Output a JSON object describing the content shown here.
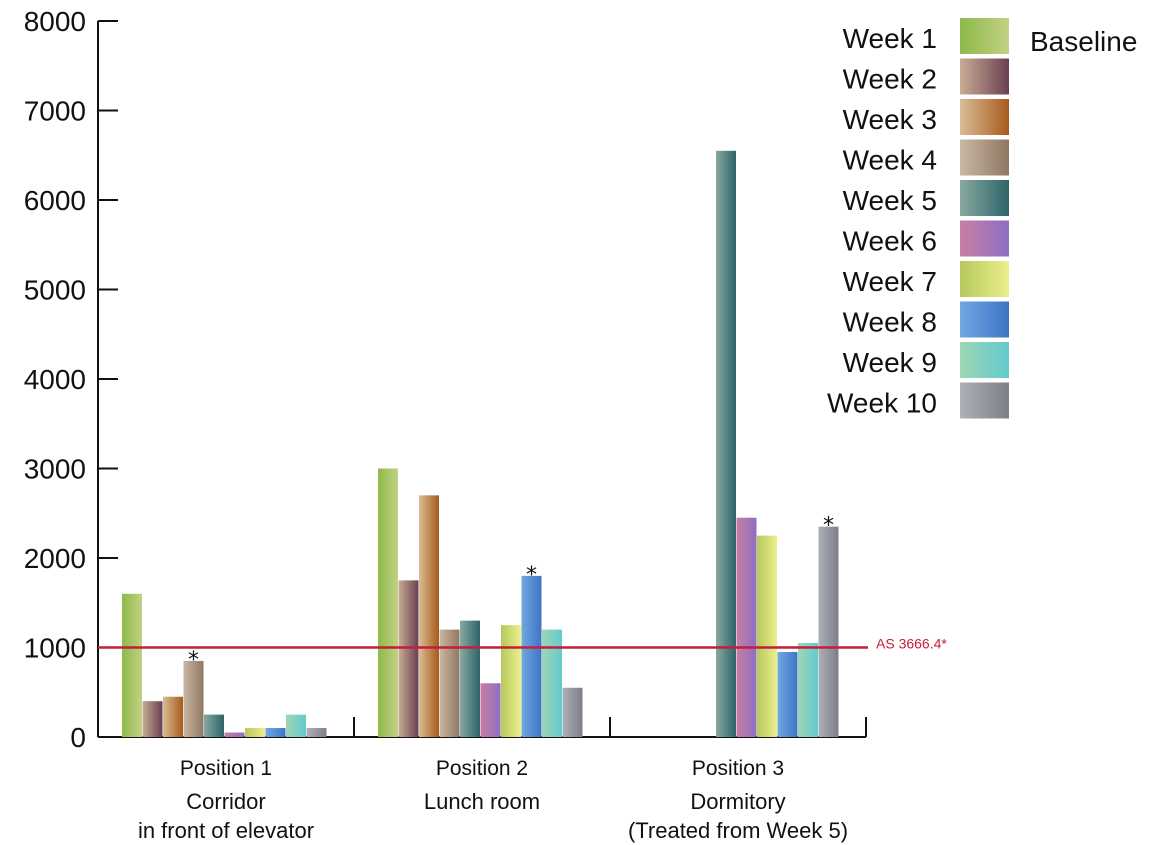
{
  "chart_data": {
    "type": "bar",
    "title": "",
    "xlabel": "",
    "ylabel": "",
    "ylim": [
      0,
      8000
    ],
    "yticks": [
      0,
      1000,
      2000,
      3000,
      4000,
      5000,
      6000,
      7000,
      8000
    ],
    "grid": false,
    "legend_placement": "top-right",
    "categories": [
      {
        "title": "Position 1",
        "subtitle": [
          "Corridor",
          "in front of elevator"
        ]
      },
      {
        "title": "Position 2",
        "subtitle": [
          "Lunch room"
        ]
      },
      {
        "title": "Position 3",
        "subtitle": [
          "Dormitory",
          "(Treated from Week 5)"
        ]
      }
    ],
    "series": [
      {
        "name": "Baseline",
        "values": [
          1600,
          3000,
          null
        ],
        "colors": [
          "#8db94a",
          "#c2d184"
        ]
      },
      {
        "name": "Week 1",
        "values": [
          null,
          null,
          null
        ],
        "colors": [
          "#8db94a",
          "#c2d184"
        ]
      },
      {
        "name": "Week 2",
        "values": [
          400,
          1750,
          null
        ],
        "colors": [
          "#c8ad95",
          "#6b3f52"
        ]
      },
      {
        "name": "Week 3",
        "values": [
          450,
          2700,
          null
        ],
        "colors": [
          "#d9bc96",
          "#a85a1c"
        ]
      },
      {
        "name": "Week 4",
        "values": [
          850,
          1200,
          null
        ],
        "colors": [
          "#c9b8a3",
          "#8f7763"
        ]
      },
      {
        "name": "Week 5",
        "values": [
          250,
          1300,
          6550
        ],
        "colors": [
          "#87a8a0",
          "#2e6469"
        ]
      },
      {
        "name": "Week 6",
        "values": [
          50,
          600,
          2450
        ],
        "colors": [
          "#c77fa4",
          "#8e6ec2"
        ]
      },
      {
        "name": "Week 7",
        "values": [
          100,
          1250,
          2250
        ],
        "colors": [
          "#b6c85d",
          "#ecef8c"
        ]
      },
      {
        "name": "Week 8",
        "values": [
          100,
          1800,
          950
        ],
        "colors": [
          "#70a8e0",
          "#3f74c6"
        ]
      },
      {
        "name": "Week 9",
        "values": [
          250,
          1200,
          1050
        ],
        "colors": [
          "#9fd6b4",
          "#62cace"
        ]
      },
      {
        "name": "Week 10",
        "values": [
          100,
          550,
          2350
        ],
        "colors": [
          "#aeb0b8",
          "#7c7f88"
        ]
      }
    ],
    "bar_series_order": [
      "Baseline",
      "Week 2",
      "Week 3",
      "Week 4",
      "Week 5",
      "Week 6",
      "Week 7",
      "Week 8",
      "Week 9",
      "Week 10"
    ],
    "annotations": [
      {
        "category": 0,
        "series": "Week 4",
        "text": "*"
      },
      {
        "category": 1,
        "series": "Week 8",
        "text": "*"
      },
      {
        "category": 2,
        "series": "Week 10",
        "text": "*"
      }
    ],
    "reference_line": {
      "value": 1000,
      "label": "AS 3666.4*",
      "color": "#c41e3a"
    }
  }
}
